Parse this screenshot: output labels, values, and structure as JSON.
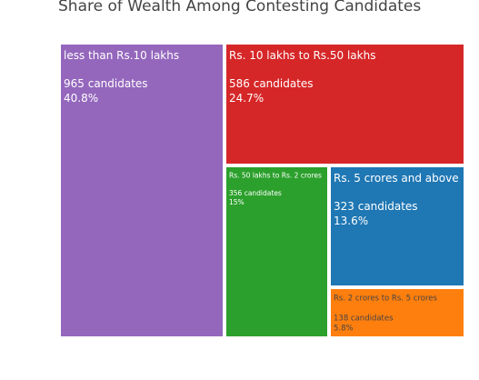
{
  "chart_data": {
    "type": "treemap",
    "title": "Share of Wealth Among Contesting Candidates",
    "tiles": [
      {
        "label": "less than Rs.10 lakhs",
        "count_text": "965 candidates",
        "percent_text": "40.8%",
        "value": 965,
        "color": "#9467bd",
        "text_color": "#ffffff"
      },
      {
        "label": "Rs. 10 lakhs to Rs.50 lakhs",
        "count_text": "586 candidates",
        "percent_text": "24.7%",
        "value": 586,
        "color": "#d62728",
        "text_color": "#ffffff"
      },
      {
        "label": "Rs. 50 lakhs to Rs. 2 crores",
        "count_text": "356 candidates",
        "percent_text": "15%",
        "value": 356,
        "color": "#2ca02c",
        "text_color": "#ffffff"
      },
      {
        "label": "Rs. 5 crores and above",
        "count_text": "323 candidates",
        "percent_text": "13.6%",
        "value": 323,
        "color": "#1f77b4",
        "text_color": "#ffffff"
      },
      {
        "label": "Rs. 2 crores to Rs. 5 crores",
        "count_text": "138 candidates",
        "percent_text": "5.8%",
        "value": 138,
        "color": "#ff7f0e",
        "text_color": "#444444"
      }
    ]
  }
}
